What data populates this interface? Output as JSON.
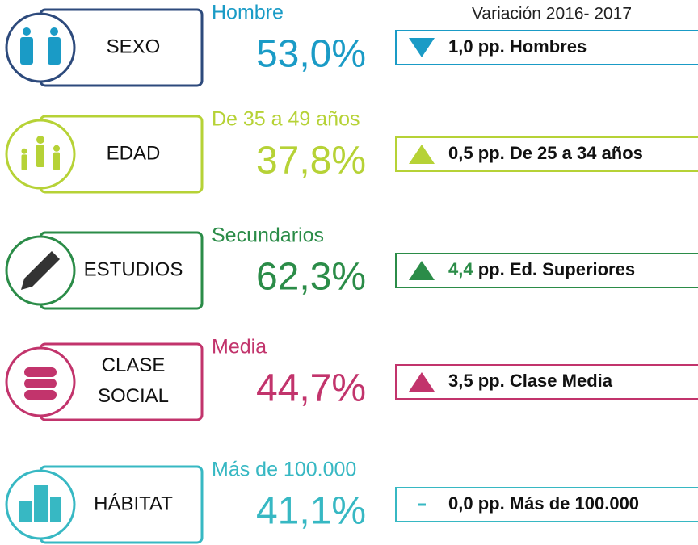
{
  "header": {
    "title": "Variación 2016- 2017"
  },
  "rows": [
    {
      "label": "SEXO",
      "category": "Hombre",
      "value": "53,0%",
      "amount": "1,0",
      "change": "pp. Hombres",
      "trend": "down",
      "color": "#1a9bc6",
      "border": "#2d4a7c",
      "amount_color": "#111111"
    },
    {
      "label": "EDAD",
      "category": "De 35 a 49 años",
      "value": "37,8%",
      "amount": "0,5",
      "change": "pp. De 25 a 34 años",
      "trend": "up",
      "color": "#b6d236",
      "border": "#b6d236",
      "amount_color": "#111111"
    },
    {
      "label": "ESTUDIOS",
      "category": "Secundarios",
      "value": "62,3%",
      "amount": "4,4",
      "change": "pp. Ed. Superiores",
      "trend": "up",
      "color": "#2b8c48",
      "border": "#2b8c48",
      "amount_color": "#2b8c48"
    },
    {
      "label": "CLASE SOCIAL",
      "category": "Media",
      "value": "44,7%",
      "amount": "3,5",
      "change": "pp. Clase Media",
      "trend": "up",
      "color": "#c2346c",
      "border": "#c2346c",
      "amount_color": "#111111"
    },
    {
      "label": "HÁBITAT",
      "category": "Más de 100.000",
      "value": "41,1%",
      "amount": "0,0",
      "change": "pp. Más de 100.000",
      "trend": "flat",
      "color": "#37b8c3",
      "border": "#37b8c3",
      "amount_color": "#111111"
    }
  ]
}
